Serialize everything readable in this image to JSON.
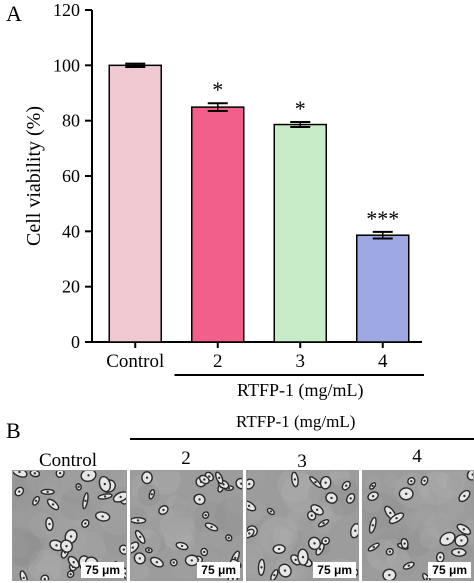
{
  "panel_a": {
    "letter": "A"
  },
  "panel_b": {
    "letter": "B",
    "group_label": "RTFP-1 (mg/mL)",
    "images": [
      {
        "label": "Control",
        "scale_bar": "75 μm"
      },
      {
        "label": "2",
        "scale_bar": "75 μm"
      },
      {
        "label": "3",
        "scale_bar": "75 μm"
      },
      {
        "label": "4",
        "scale_bar": "75 μm"
      }
    ]
  },
  "chart_data": {
    "type": "bar",
    "title": "",
    "xlabel": "RTFP-1 (mg/mL)",
    "ylabel": "Cell viability (%)",
    "ylim": [
      0,
      120
    ],
    "yticks": [
      0,
      20,
      40,
      60,
      80,
      100,
      120
    ],
    "grid": false,
    "categories": [
      "Control",
      "2",
      "3",
      "4"
    ],
    "values": [
      100,
      84.9,
      78.6,
      38.6
    ],
    "errors": [
      0.6,
      1.4,
      0.9,
      1.2
    ],
    "significance": [
      "",
      "*",
      "*",
      "***"
    ],
    "colors": [
      "#efc8d2",
      "#f15f8a",
      "#c8ecc8",
      "#9ea8e2"
    ]
  }
}
